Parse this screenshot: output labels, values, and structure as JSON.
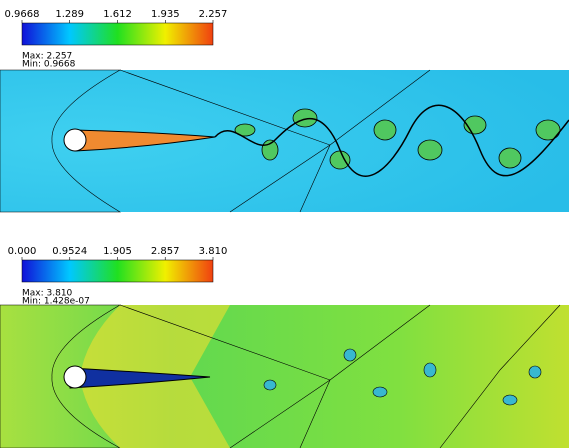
{
  "chart_data": [
    {
      "type": "colorbar",
      "xlim": [
        0.9668,
        2.257
      ],
      "xticks": [
        0.9668,
        1.289,
        1.612,
        1.935,
        2.257
      ],
      "colormap": [
        "#1010d8",
        "#00c8ff",
        "#20e020",
        "#f0f000",
        "#f04010"
      ],
      "max_label": "Max: 2.257",
      "min_label": "Min: 0.9668"
    },
    {
      "type": "colorbar",
      "xlim": [
        0,
        3.81
      ],
      "xticks": [
        {
          "value": 0,
          "label": "0.000"
        },
        0.9524,
        1.905,
        2.857,
        {
          "value": 3.81,
          "label": "3.810"
        }
      ],
      "colormap": [
        "#1010d8",
        "#00c8ff",
        "#20e020",
        "#f0f000",
        "#f04010"
      ],
      "max_label": "Max: 3.810",
      "min_label": "Min: 1.428e-07"
    }
  ]
}
